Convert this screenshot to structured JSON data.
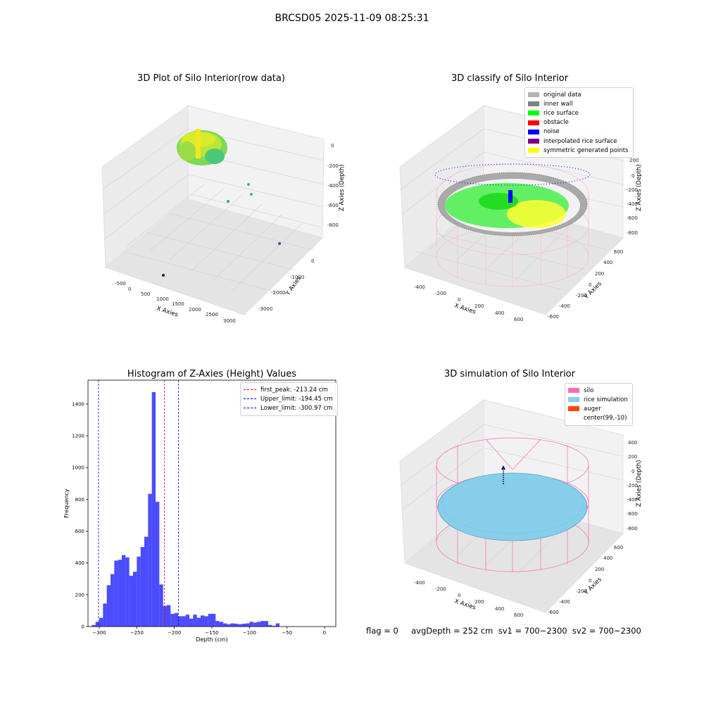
{
  "suptitle": "BRCSD05 2025-11-09 08:25:31",
  "panels": {
    "raw": {
      "title": "3D Plot of Silo Interior(row data)",
      "xlabel": "X Axies",
      "ylabel": "Y Axies",
      "zlabel": "Z Axies (Depth)",
      "xticks": [
        "-500",
        "0",
        "500",
        "1000",
        "1500",
        "2000",
        "2500",
        "3000"
      ],
      "yticks": [
        "0",
        "-1000",
        "-2000",
        "-3000"
      ],
      "zticks": [
        "0",
        "-200",
        "-400",
        "-600",
        "-800"
      ]
    },
    "classify": {
      "title": "3D classify of Silo Interior",
      "xlabel": "X Axies",
      "ylabel": "Y Axies",
      "zlabel": "Z Axies (Depth)",
      "xticks": [
        "-400",
        "-200",
        "0",
        "200",
        "400",
        "600"
      ],
      "yticks": [
        "600",
        "400",
        "200",
        "0",
        "-200",
        "-400",
        "-600"
      ],
      "zticks": [
        "400",
        "200",
        "0",
        "-200",
        "-400",
        "-600",
        "-800"
      ],
      "legend": [
        {
          "label": "original data",
          "color": "#b3b3b3"
        },
        {
          "label": "inner wall",
          "color": "#808080"
        },
        {
          "label": "rice surface",
          "color": "#00ff00"
        },
        {
          "label": "obstacle",
          "color": "#ff0000"
        },
        {
          "label": "noise",
          "color": "#0000ff"
        },
        {
          "label": "interpolated rice surface",
          "color": "#800080"
        },
        {
          "label": "symmetric generated points",
          "color": "#ffff00"
        }
      ]
    },
    "simulation": {
      "title": "3D simulation of Silo Interior",
      "xlabel": "X Axies",
      "ylabel": "Y Axies",
      "zlabel": "Z Axies (Depth)",
      "xticks": [
        "-400",
        "-200",
        "0",
        "200",
        "400",
        "600"
      ],
      "yticks": [
        "600",
        "400",
        "200",
        "0",
        "-200",
        "-400",
        "-600"
      ],
      "zticks": [
        "400",
        "200",
        "0",
        "-200",
        "-400",
        "-600",
        "-800"
      ],
      "legend": [
        {
          "label": "silo",
          "color": "#ff69b4"
        },
        {
          "label": "rice simulation",
          "color": "#87ceeb"
        },
        {
          "label": "auger",
          "color": "#ff4500"
        },
        {
          "label": "center(99,-10)",
          "color": "#ffffff"
        }
      ]
    }
  },
  "chart_data": {
    "type": "bar",
    "title": "Histogram of Z-Axies (Height) Values",
    "xlabel": "Depth (cm)",
    "ylabel": "Frequency",
    "xlim": [
      -315,
      15
    ],
    "ylim": [
      0,
      1550
    ],
    "xticks": [
      -300,
      -250,
      -200,
      -150,
      -100,
      -50,
      0
    ],
    "yticks": [
      0,
      200,
      400,
      600,
      800,
      1000,
      1200,
      1400
    ],
    "bar_color": "#0000ff",
    "bins": [
      [
        -310,
        -305,
        10
      ],
      [
        -305,
        -300,
        30
      ],
      [
        -300,
        -295,
        55
      ],
      [
        -295,
        -290,
        145
      ],
      [
        -290,
        -285,
        260
      ],
      [
        -285,
        -280,
        330
      ],
      [
        -280,
        -275,
        415
      ],
      [
        -275,
        -270,
        420
      ],
      [
        -270,
        -265,
        450
      ],
      [
        -265,
        -260,
        435
      ],
      [
        -260,
        -255,
        320
      ],
      [
        -255,
        -250,
        345
      ],
      [
        -250,
        -245,
        440
      ],
      [
        -245,
        -240,
        500
      ],
      [
        -240,
        -235,
        565
      ],
      [
        -235,
        -230,
        835
      ],
      [
        -230,
        -225,
        1475
      ],
      [
        -225,
        -220,
        785
      ],
      [
        -220,
        -215,
        265
      ],
      [
        -215,
        -210,
        130
      ],
      [
        -210,
        -205,
        135
      ],
      [
        -205,
        -200,
        80
      ],
      [
        -200,
        -195,
        85
      ],
      [
        -195,
        -190,
        65
      ],
      [
        -190,
        -185,
        65
      ],
      [
        -185,
        -180,
        75
      ],
      [
        -180,
        -175,
        50
      ],
      [
        -175,
        -170,
        75
      ],
      [
        -170,
        -165,
        55
      ],
      [
        -165,
        -160,
        70
      ],
      [
        -160,
        -155,
        65
      ],
      [
        -155,
        -150,
        80
      ],
      [
        -150,
        -145,
        80
      ],
      [
        -145,
        -140,
        35
      ],
      [
        -140,
        -135,
        30
      ],
      [
        -135,
        -130,
        20
      ],
      [
        -130,
        -125,
        15
      ],
      [
        -125,
        -120,
        20
      ],
      [
        -120,
        -115,
        18
      ],
      [
        -115,
        -110,
        15
      ],
      [
        -110,
        -105,
        18
      ],
      [
        -105,
        -100,
        20
      ],
      [
        -100,
        -95,
        30
      ],
      [
        -95,
        -90,
        25
      ],
      [
        -90,
        -85,
        30
      ],
      [
        -85,
        -80,
        35
      ],
      [
        -80,
        -75,
        35
      ],
      [
        -75,
        -70,
        10
      ],
      [
        -70,
        -65,
        5
      ],
      [
        -65,
        -60,
        20
      ],
      [
        -60,
        -55,
        0
      ],
      [
        -55,
        -50,
        0
      ]
    ],
    "vlines": [
      {
        "label": "first_peak: -213.24 cm",
        "value": -213.24,
        "color": "#ff0000"
      },
      {
        "label": "Upper_limit: -194.45 cm",
        "value": -194.45,
        "color": "#0000ff"
      },
      {
        "label": "Lower_limit: -300.97 cm",
        "value": -300.97,
        "color": "#0000ff"
      }
    ]
  },
  "footer": "flag = 0     avgDepth = 252 cm  sv1 = 700~2300  sv2 = 700~2300"
}
